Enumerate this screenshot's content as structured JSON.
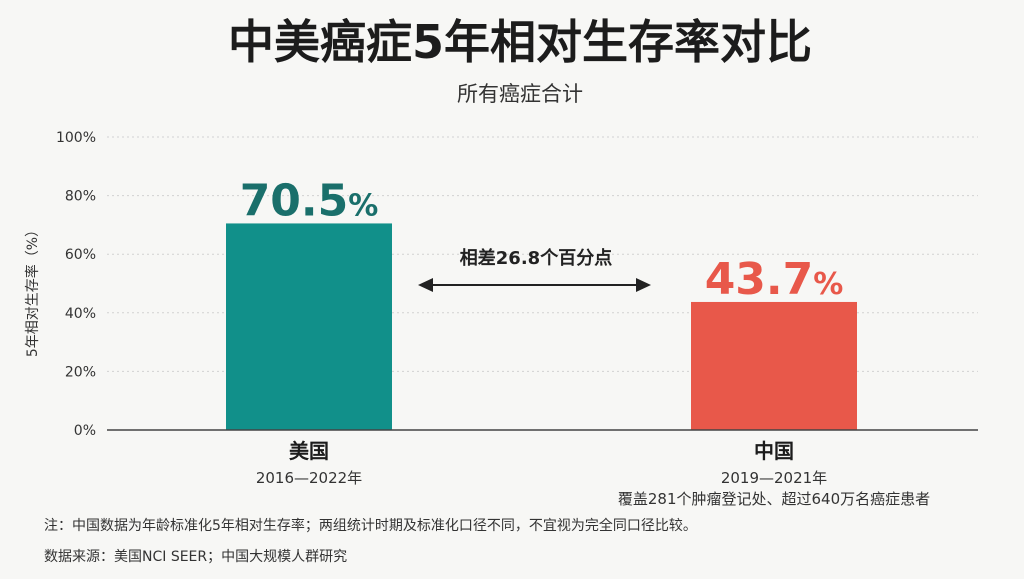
{
  "chart_data": {
    "type": "bar",
    "title": "中美癌症5年相对生存率对比",
    "subtitle": "所有癌症合计",
    "ylabel": "5年相对生存率（%）",
    "ylim": [
      0,
      100
    ],
    "yticks": [
      0,
      20,
      40,
      60,
      80,
      100
    ],
    "ytick_labels": [
      "0%",
      "20%",
      "40%",
      "60%",
      "80%",
      "100%"
    ],
    "grid": true,
    "bars": [
      {
        "name": "美国",
        "period": "2016—2022年",
        "note": "",
        "value": 70.5,
        "value_label": "70.5",
        "unit": "%",
        "color": "#11908a"
      },
      {
        "name": "中国",
        "period": "2019—2021年",
        "note": "覆盖281个肿瘤登记处、超过640万名癌症患者",
        "value": 43.7,
        "value_label": "43.7",
        "unit": "%",
        "color": "#e8584a"
      }
    ],
    "annotation": "相差26.8个百分点",
    "value_colors": [
      "#1a6f6b",
      "#e8584a"
    ]
  },
  "footnote": "注：中国数据为年龄标准化5年相对生存率；两组统计时期及标准化口径不同，不宜视为完全同口径比较。",
  "source": "数据来源：美国NCI SEER；中国大规模人群研究"
}
